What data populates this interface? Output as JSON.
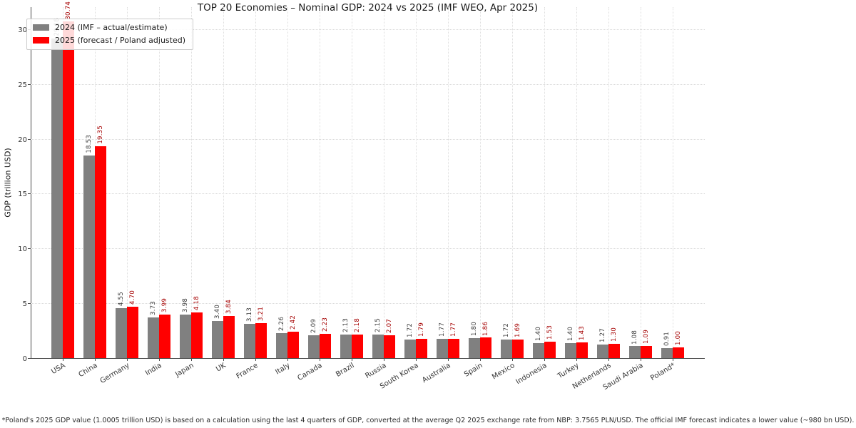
{
  "chart_data": {
    "type": "bar",
    "title": "TOP 20 Economies – Nominal GDP: 2024 vs 2025 (IMF WEO, Apr 2025)",
    "xlabel": "",
    "ylabel": "GDP (trillion USD)",
    "ylim": [
      0,
      32
    ],
    "yticks": [
      0,
      5,
      10,
      15,
      20,
      25,
      30
    ],
    "grid": true,
    "legend_position": "upper left",
    "categories": [
      "USA",
      "China",
      "Germany",
      "India",
      "Japan",
      "UK",
      "France",
      "Italy",
      "Canada",
      "Brazil",
      "Russia",
      "South Korea",
      "Australia",
      "Spain",
      "Mexico",
      "Indonesia",
      "Turkey",
      "Netherlands",
      "Saudi Arabia",
      "Poland*"
    ],
    "series": [
      {
        "name": "2024 (IMF – actual/estimate)",
        "color": "#808080",
        "label_color": "#3c3c3c",
        "values": [
          29.18,
          18.53,
          4.55,
          3.73,
          3.98,
          3.4,
          3.13,
          2.26,
          2.09,
          2.13,
          2.15,
          1.72,
          1.77,
          1.8,
          1.72,
          1.4,
          1.4,
          1.27,
          1.08,
          0.91
        ]
      },
      {
        "name": "2025 (forecast / Poland adjusted)",
        "color": "#ff0000",
        "label_color": "#a50000",
        "values": [
          30.74,
          19.35,
          4.7,
          3.99,
          4.18,
          3.84,
          3.21,
          2.42,
          2.23,
          2.18,
          2.07,
          1.79,
          1.77,
          1.86,
          1.69,
          1.53,
          1.43,
          1.3,
          1.09,
          1.0
        ]
      }
    ],
    "bar_value_labels": "rotated 90° above bars, two decimals",
    "footnote": "*Poland's 2025 GDP value (1.0005 trillion USD) is based on a calculation using the last 4 quarters of GDP, converted at the average Q2 2025 exchange rate from NBP: 3.7565 PLN/USD. The official IMF forecast indicates a lower value (~980 bn USD)."
  },
  "colors": {
    "axis": "#4a4a4a",
    "grid": "#d9d9d9",
    "tick_text": "#333333",
    "title_text": "#1a1a1a",
    "legend_border": "#cccccc"
  }
}
